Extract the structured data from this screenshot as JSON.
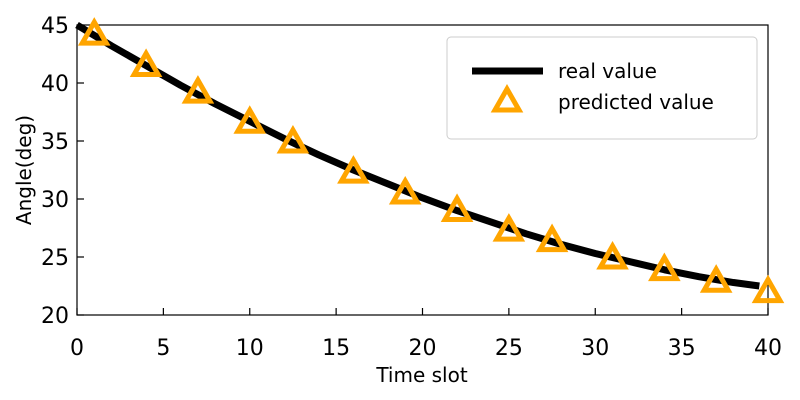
{
  "chart_data": {
    "type": "line",
    "title": "",
    "xlabel": "Time slot",
    "ylabel": "Angle(deg)",
    "xlim": [
      0,
      40
    ],
    "ylim": [
      20,
      45
    ],
    "xticks": [
      0,
      5,
      10,
      15,
      20,
      25,
      30,
      35,
      40
    ],
    "yticks": [
      20,
      25,
      30,
      35,
      40,
      45
    ],
    "grid": false,
    "legend_position": "top-right",
    "series": [
      {
        "name": "real value",
        "style": "line",
        "color": "#000000",
        "x": [
          0,
          2,
          4,
          6,
          8,
          10,
          12,
          14,
          16,
          18,
          20,
          22,
          24,
          26,
          28,
          30,
          32,
          34,
          36,
          38,
          39.5
        ],
        "y": [
          45.0,
          43.2,
          41.5,
          39.8,
          38.2,
          36.7,
          35.2,
          33.8,
          32.5,
          31.3,
          30.1,
          29.0,
          28.0,
          27.0,
          26.1,
          25.3,
          24.6,
          23.9,
          23.3,
          22.8,
          22.5
        ]
      },
      {
        "name": "predicted value",
        "style": "marker",
        "marker": "triangle",
        "color": "#FFA500",
        "x": [
          1,
          4,
          7,
          10,
          12.5,
          16,
          19,
          22,
          25,
          27.5,
          31,
          34,
          37,
          40
        ],
        "y": [
          44.3,
          41.6,
          39.3,
          36.7,
          35.0,
          32.4,
          30.6,
          29.1,
          27.4,
          26.5,
          25.0,
          24.0,
          23.0,
          22.1
        ]
      }
    ]
  }
}
